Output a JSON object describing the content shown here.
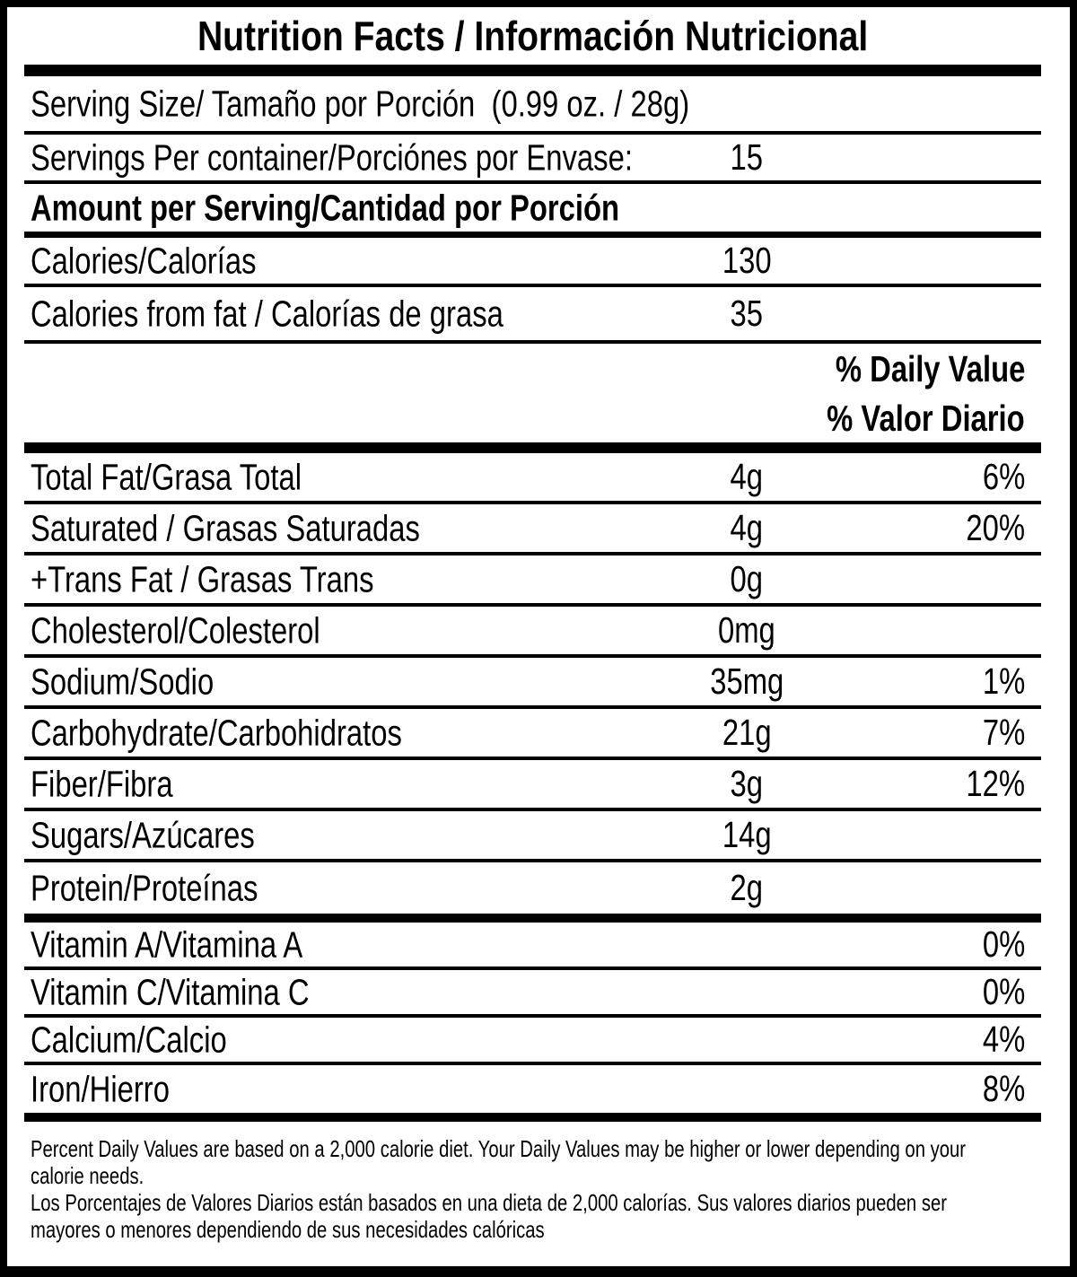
{
  "page": {
    "background_color": "#ffffff",
    "ink_color": "#000000"
  },
  "label": {
    "title": "Nutrition Facts / Información Nutricional",
    "serving_size": "Serving Size/ Tamaño por Porción  (0.99 oz. / 28g)",
    "servings_per_container": {
      "label": "Servings Per container/Porciónes por Envase:",
      "value": "15"
    },
    "amount_per_serving": "Amount per Serving/Cantidad por Porción",
    "calories": {
      "label": "Calories/Calorías",
      "value": "130"
    },
    "calories_from_fat": {
      "label": "Calories from fat / Calorías de grasa",
      "value": "35"
    },
    "daily_value_header_en": "% Daily Value",
    "daily_value_header_es": "% Valor Diario",
    "nutrients": [
      {
        "label": "Total Fat/Grasa Total",
        "amount": "4g",
        "dv": "6%",
        "after": "thin"
      },
      {
        "label": "Saturated / Grasas Saturadas",
        "amount": "4g",
        "dv": "20%",
        "after": "thin"
      },
      {
        "label": "+Trans Fat / Grasas Trans",
        "amount": "0g",
        "dv": "",
        "after": "thin"
      },
      {
        "label": "Cholesterol/Colesterol",
        "amount": "0mg",
        "dv": "",
        "after": "thin"
      },
      {
        "label": "Sodium/Sodio",
        "amount": "35mg",
        "dv": "1%",
        "after": "thin"
      },
      {
        "label": "Carbohydrate/Carbohidratos",
        "amount": "21g",
        "dv": "7%",
        "after": "thin"
      },
      {
        "label": "Fiber/Fibra",
        "amount": "3g",
        "dv": "12%",
        "after": "thin"
      },
      {
        "label": "Sugars/Azúcares",
        "amount": "14g",
        "dv": "",
        "after": "thin"
      },
      {
        "label": "Protein/Proteínas",
        "amount": "2g",
        "dv": "",
        "after": "thick"
      },
      {
        "label": "Vitamin A/Vitamina A",
        "amount": "",
        "dv": "0%",
        "after": "thin"
      },
      {
        "label": "Vitamin C/Vitamina C",
        "amount": "",
        "dv": "0%",
        "after": "thin"
      },
      {
        "label": "Calcium/Calcio",
        "amount": "",
        "dv": "4%",
        "after": "thin"
      },
      {
        "label": "Iron/Hierro",
        "amount": "",
        "dv": "8%",
        "after": "thick"
      }
    ],
    "footnote_en_lines": [
      "Percent Daily Values are based on a 2,000 calorie diet. Your Daily Values may be higher or lower depending on your",
      "calorie needs."
    ],
    "footnote_es_lines": [
      "Los Porcentajes de Valores Diarios están basados en una dieta de 2,000 calorías. Sus valores diarios pueden ser",
      "mayores o menores dependiendo de sus necesidades calóricas"
    ]
  }
}
